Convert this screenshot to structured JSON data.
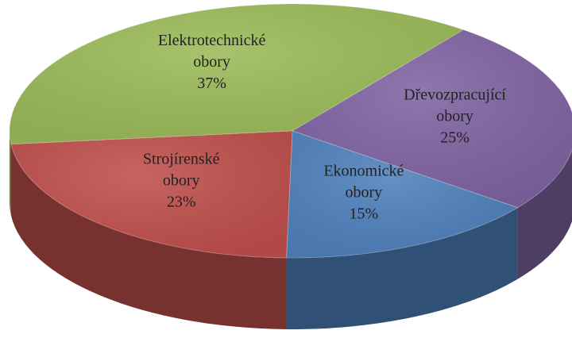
{
  "chart_data": {
    "type": "pie",
    "categories": [
      "Elektrotechnické obory",
      "Dřevozpracující obory",
      "Ekonomické obory",
      "Strojírenské obory"
    ],
    "values": [
      37,
      25,
      15,
      23
    ],
    "value_labels": [
      "37%",
      "25%",
      "15%",
      "23%"
    ],
    "colors": [
      "#9bbb59",
      "#8064a2",
      "#4f81bd",
      "#c0504d"
    ]
  }
}
